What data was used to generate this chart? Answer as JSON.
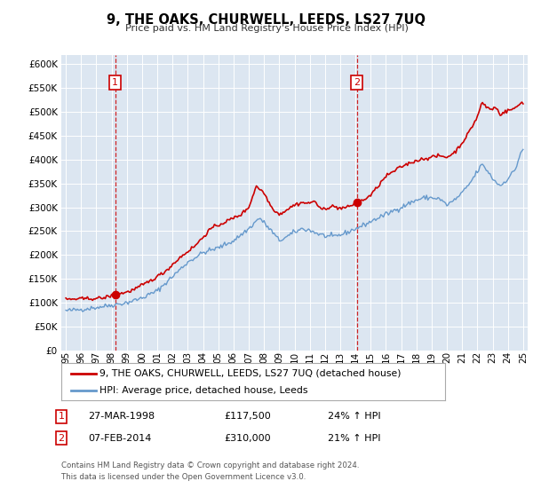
{
  "title": "9, THE OAKS, CHURWELL, LEEDS, LS27 7UQ",
  "subtitle": "Price paid vs. HM Land Registry's House Price Index (HPI)",
  "ylim": [
    0,
    620000
  ],
  "yticks": [
    0,
    50000,
    100000,
    150000,
    200000,
    250000,
    300000,
    350000,
    400000,
    450000,
    500000,
    550000,
    600000
  ],
  "xlim_start": 1994.7,
  "xlim_end": 2025.3,
  "bg_color": "#dce6f1",
  "hpi_color": "#6699cc",
  "price_color": "#cc0000",
  "sale1_x": 1998.23,
  "sale1_y": 117500,
  "sale2_x": 2014.09,
  "sale2_y": 310000,
  "sale1_label": "1",
  "sale2_label": "2",
  "legend_line1": "9, THE OAKS, CHURWELL, LEEDS, LS27 7UQ (detached house)",
  "legend_line2": "HPI: Average price, detached house, Leeds",
  "annotation1_num": "1",
  "annotation1_date": "27-MAR-1998",
  "annotation1_price": "£117,500",
  "annotation1_hpi": "24% ↑ HPI",
  "annotation2_num": "2",
  "annotation2_date": "07-FEB-2014",
  "annotation2_price": "£310,000",
  "annotation2_hpi": "21% ↑ HPI",
  "footer1": "Contains HM Land Registry data © Crown copyright and database right 2024.",
  "footer2": "This data is licensed under the Open Government Licence v3.0.",
  "hpi_anchors": [
    [
      1995.0,
      83000
    ],
    [
      1996.0,
      86000
    ],
    [
      1997.0,
      90000
    ],
    [
      1998.0,
      95000
    ],
    [
      1999.0,
      100000
    ],
    [
      2000.0,
      110000
    ],
    [
      2001.0,
      125000
    ],
    [
      2002.0,
      155000
    ],
    [
      2003.0,
      185000
    ],
    [
      2004.0,
      205000
    ],
    [
      2005.0,
      215000
    ],
    [
      2006.0,
      230000
    ],
    [
      2007.0,
      255000
    ],
    [
      2007.7,
      278000
    ],
    [
      2008.5,
      250000
    ],
    [
      2009.0,
      230000
    ],
    [
      2009.5,
      238000
    ],
    [
      2010.0,
      248000
    ],
    [
      2010.5,
      255000
    ],
    [
      2011.0,
      252000
    ],
    [
      2011.5,
      245000
    ],
    [
      2012.0,
      240000
    ],
    [
      2012.5,
      238000
    ],
    [
      2013.0,
      242000
    ],
    [
      2013.5,
      248000
    ],
    [
      2014.0,
      255000
    ],
    [
      2014.5,
      262000
    ],
    [
      2015.0,
      270000
    ],
    [
      2015.5,
      278000
    ],
    [
      2016.0,
      285000
    ],
    [
      2016.5,
      293000
    ],
    [
      2017.0,
      300000
    ],
    [
      2017.5,
      308000
    ],
    [
      2018.0,
      315000
    ],
    [
      2018.5,
      320000
    ],
    [
      2019.0,
      320000
    ],
    [
      2019.5,
      318000
    ],
    [
      2020.0,
      305000
    ],
    [
      2020.5,
      315000
    ],
    [
      2021.0,
      330000
    ],
    [
      2021.5,
      350000
    ],
    [
      2022.0,
      375000
    ],
    [
      2022.3,
      390000
    ],
    [
      2022.7,
      375000
    ],
    [
      2023.0,
      360000
    ],
    [
      2023.5,
      345000
    ],
    [
      2024.0,
      360000
    ],
    [
      2024.5,
      380000
    ],
    [
      2024.9,
      420000
    ]
  ],
  "price_anchors": [
    [
      1995.0,
      107000
    ],
    [
      1996.0,
      108000
    ],
    [
      1997.0,
      109000
    ],
    [
      1997.5,
      110000
    ],
    [
      1998.23,
      117500
    ],
    [
      1999.0,
      122000
    ],
    [
      1999.5,
      128000
    ],
    [
      2000.5,
      145000
    ],
    [
      2001.5,
      165000
    ],
    [
      2002.5,
      195000
    ],
    [
      2003.5,
      220000
    ],
    [
      2004.5,
      255000
    ],
    [
      2005.5,
      270000
    ],
    [
      2006.5,
      285000
    ],
    [
      2007.0,
      300000
    ],
    [
      2007.5,
      345000
    ],
    [
      2008.0,
      330000
    ],
    [
      2008.5,
      300000
    ],
    [
      2009.0,
      285000
    ],
    [
      2009.5,
      295000
    ],
    [
      2010.0,
      305000
    ],
    [
      2010.5,
      310000
    ],
    [
      2011.0,
      308000
    ],
    [
      2011.3,
      315000
    ],
    [
      2011.7,
      295000
    ],
    [
      2012.0,
      298000
    ],
    [
      2012.5,
      302000
    ],
    [
      2013.0,
      298000
    ],
    [
      2013.5,
      300000
    ],
    [
      2014.09,
      310000
    ],
    [
      2014.5,
      315000
    ],
    [
      2015.0,
      325000
    ],
    [
      2015.5,
      345000
    ],
    [
      2016.0,
      365000
    ],
    [
      2016.5,
      375000
    ],
    [
      2017.0,
      385000
    ],
    [
      2017.5,
      392000
    ],
    [
      2018.0,
      398000
    ],
    [
      2018.5,
      402000
    ],
    [
      2019.0,
      405000
    ],
    [
      2019.5,
      408000
    ],
    [
      2020.0,
      405000
    ],
    [
      2020.5,
      415000
    ],
    [
      2021.0,
      435000
    ],
    [
      2021.5,
      460000
    ],
    [
      2022.0,
      490000
    ],
    [
      2022.3,
      520000
    ],
    [
      2022.6,
      510000
    ],
    [
      2022.9,
      505000
    ],
    [
      2023.2,
      510000
    ],
    [
      2023.5,
      495000
    ],
    [
      2023.8,
      500000
    ],
    [
      2024.2,
      505000
    ],
    [
      2024.5,
      508000
    ],
    [
      2024.9,
      520000
    ]
  ]
}
